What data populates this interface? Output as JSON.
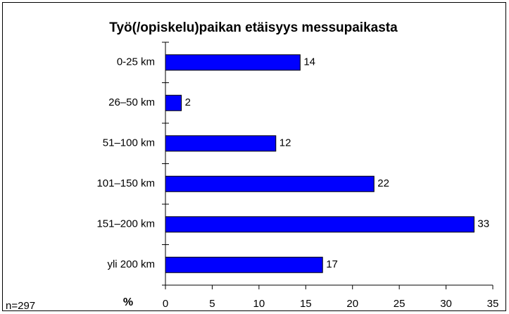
{
  "chart_data": {
    "type": "barh",
    "title": "Työ(/opiskelu)paikan etäisyys messupaikasta",
    "categories": [
      "0-25 km",
      "26–50 km",
      "51–100 km",
      "101–150 km",
      "151–200 km",
      "yli 200 km"
    ],
    "values": [
      14.4,
      1.7,
      11.8,
      22.3,
      33,
      16.8
    ],
    "value_labels": [
      "14",
      "2",
      "12",
      "22",
      "33",
      "17"
    ],
    "color": "#0000ff",
    "xlim": [
      0,
      35
    ],
    "xticks": [
      0,
      5,
      10,
      15,
      20,
      25,
      30,
      35
    ],
    "x_label": "%",
    "note": "n=297"
  }
}
